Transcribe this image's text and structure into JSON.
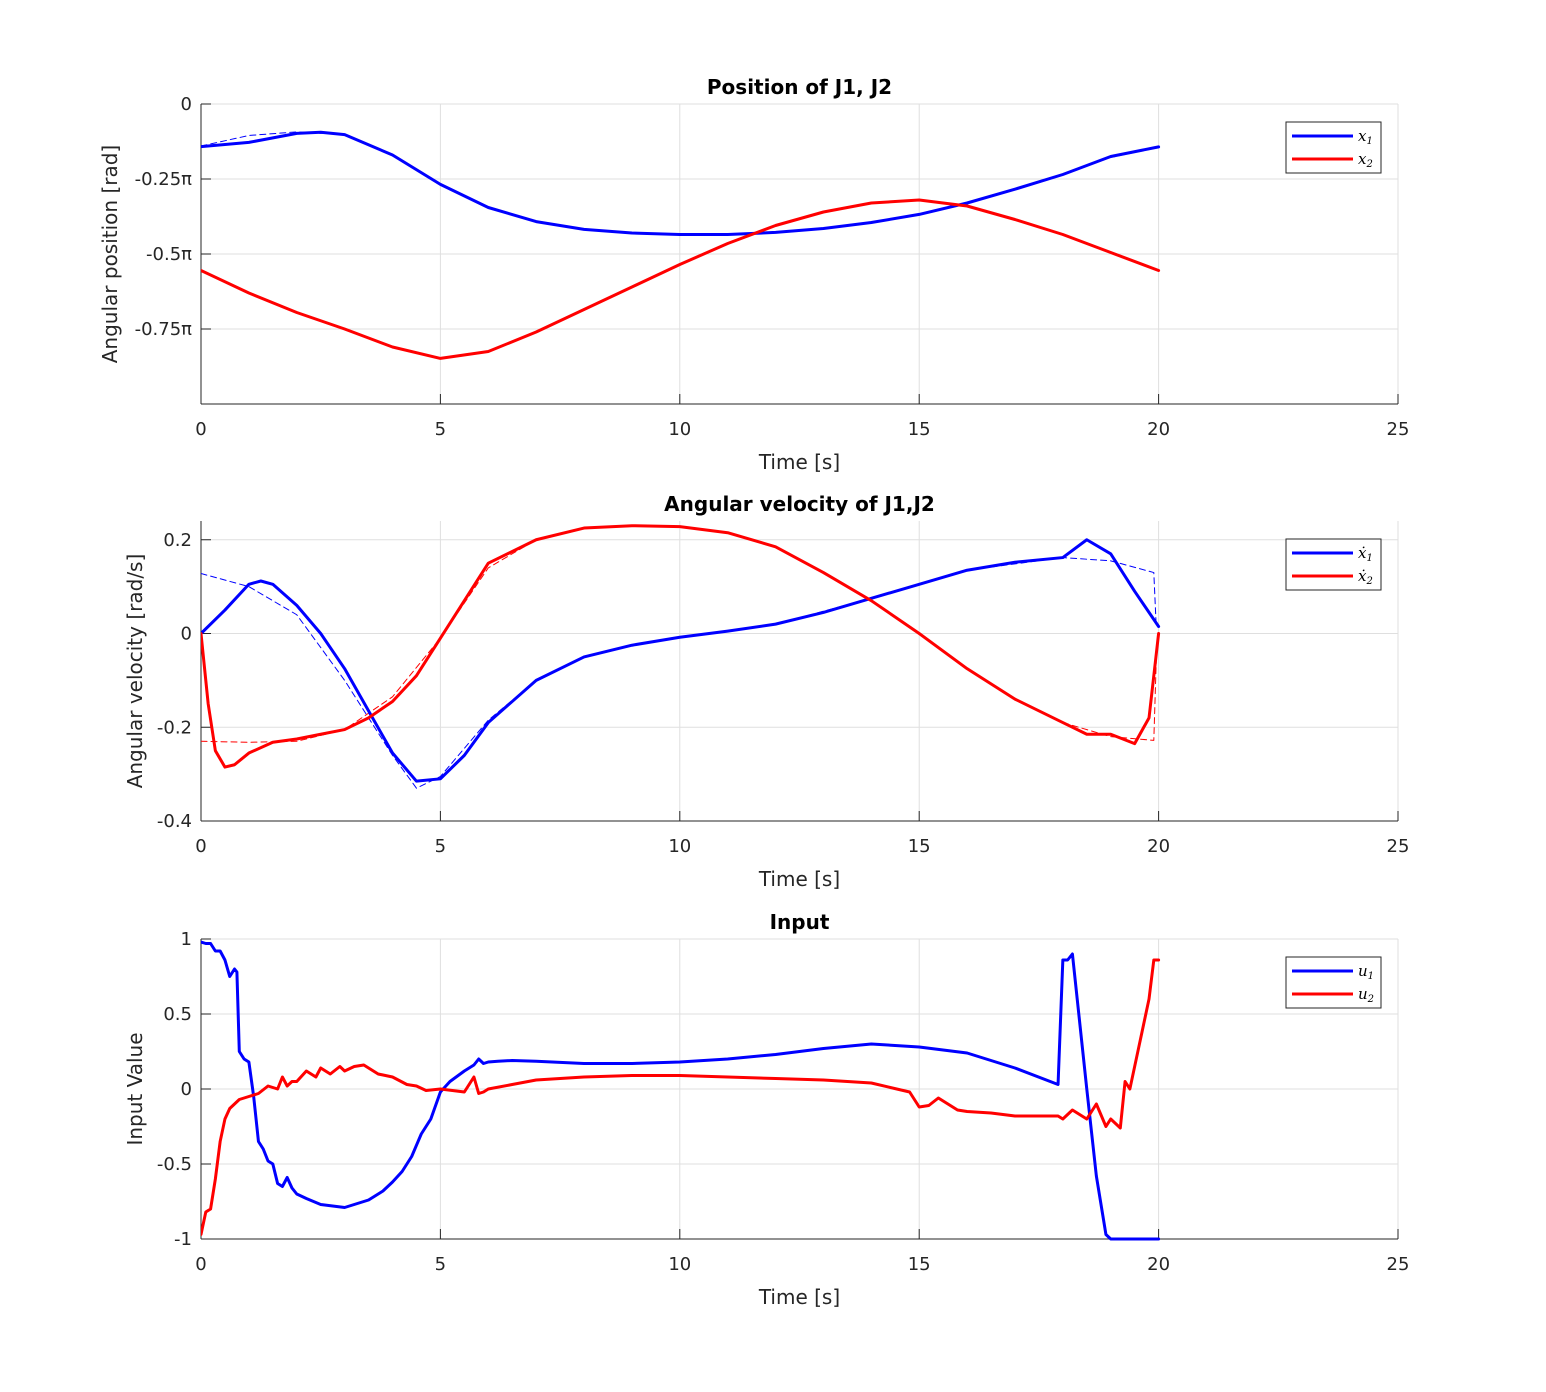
{
  "chart_data": [
    {
      "type": "line",
      "title": "Position of J1, J2",
      "xlabel": "Time [s]",
      "ylabel": "Angular position [rad]",
      "xlim": [
        0,
        25
      ],
      "ylim": [
        -1.0,
        0
      ],
      "xticks": [
        0,
        5,
        10,
        15,
        20,
        25
      ],
      "xtick_labels": [
        "0",
        "5",
        "10",
        "15",
        "20",
        "25"
      ],
      "yticks": [
        0,
        -0.25,
        -0.5,
        -0.75
      ],
      "ytick_labels": [
        "0",
        "-0.25π",
        "-0.5π",
        "-0.75π"
      ],
      "y_unit_note": "values in units of π rad",
      "grid": true,
      "legend": "top-right",
      "series": [
        {
          "name": "x1",
          "label_main": "x",
          "label_sub": "1",
          "color": "#0000ff",
          "style": "solid",
          "x": [
            0,
            1,
            2,
            2.5,
            3,
            4,
            5,
            6,
            7,
            8,
            9,
            10,
            11,
            12,
            13,
            14,
            15,
            16,
            17,
            18,
            19,
            20
          ],
          "y": [
            -0.142,
            -0.128,
            -0.098,
            -0.094,
            -0.102,
            -0.17,
            -0.268,
            -0.345,
            -0.392,
            -0.418,
            -0.43,
            -0.435,
            -0.435,
            -0.428,
            -0.415,
            -0.395,
            -0.368,
            -0.33,
            -0.284,
            -0.235,
            -0.175,
            -0.143
          ]
        },
        {
          "name": "x2",
          "label_main": "x",
          "label_sub": "2",
          "color": "#ff0000",
          "style": "solid",
          "x": [
            0,
            1,
            2,
            3,
            4,
            5,
            6,
            7,
            8,
            9,
            10,
            11,
            12,
            13,
            14,
            15,
            16,
            17,
            18,
            19,
            20
          ],
          "y": [
            -0.555,
            -0.63,
            -0.695,
            -0.75,
            -0.81,
            -0.848,
            -0.825,
            -0.76,
            -0.685,
            -0.61,
            -0.535,
            -0.465,
            -0.405,
            -0.36,
            -0.33,
            -0.32,
            -0.34,
            -0.385,
            -0.435,
            -0.495,
            -0.555
          ]
        },
        {
          "name": "x1 reference",
          "color": "#0000ff",
          "style": "dashed",
          "x": [
            0,
            1,
            2,
            3,
            4,
            5,
            6,
            7,
            8,
            9,
            10,
            11,
            12,
            13,
            14,
            15,
            16,
            17,
            18,
            19,
            20
          ],
          "y": [
            -0.14,
            -0.105,
            -0.093,
            -0.102,
            -0.17,
            -0.268,
            -0.345,
            -0.392,
            -0.418,
            -0.43,
            -0.435,
            -0.435,
            -0.428,
            -0.415,
            -0.395,
            -0.368,
            -0.33,
            -0.284,
            -0.235,
            -0.178,
            -0.145
          ]
        },
        {
          "name": "x2 reference",
          "color": "#ff0000",
          "style": "dashed",
          "x": [
            0,
            1,
            2,
            3,
            4,
            5,
            6,
            7,
            8,
            9,
            10,
            11,
            12,
            13,
            14,
            15,
            16,
            17,
            18,
            19,
            20
          ],
          "y": [
            -0.555,
            -0.628,
            -0.695,
            -0.75,
            -0.81,
            -0.848,
            -0.825,
            -0.76,
            -0.685,
            -0.61,
            -0.535,
            -0.465,
            -0.405,
            -0.36,
            -0.33,
            -0.32,
            -0.34,
            -0.385,
            -0.435,
            -0.495,
            -0.555
          ]
        }
      ]
    },
    {
      "type": "line",
      "title": "Angular velocity of J1,J2",
      "xlabel": "Time [s]",
      "ylabel": "Angular velocity [rad/s]",
      "xlim": [
        0,
        25
      ],
      "ylim": [
        -0.4,
        0.24
      ],
      "xticks": [
        0,
        5,
        10,
        15,
        20,
        25
      ],
      "xtick_labels": [
        "0",
        "5",
        "10",
        "15",
        "20",
        "25"
      ],
      "yticks": [
        0.2,
        0,
        -0.2,
        -0.4
      ],
      "ytick_labels": [
        "0.2",
        "0",
        "-0.2",
        "-0.4"
      ],
      "grid": true,
      "legend": "top-right",
      "series": [
        {
          "name": "x1 dot",
          "label_main": "ẋ",
          "label_sub": "1",
          "color": "#0000ff",
          "style": "solid",
          "x": [
            0,
            0.5,
            1,
            1.25,
            1.5,
            2,
            2.5,
            3,
            3.5,
            4,
            4.5,
            5,
            5.5,
            6,
            7,
            8,
            9,
            10,
            11,
            12,
            13,
            14,
            15,
            16,
            17,
            18,
            18.5,
            19,
            19.5,
            20
          ],
          "y": [
            0,
            0.05,
            0.105,
            0.112,
            0.105,
            0.06,
            0.0,
            -0.075,
            -0.165,
            -0.255,
            -0.315,
            -0.31,
            -0.26,
            -0.19,
            -0.1,
            -0.05,
            -0.025,
            -0.008,
            0.005,
            0.02,
            0.045,
            0.075,
            0.105,
            0.135,
            0.152,
            0.162,
            0.2,
            0.17,
            0.09,
            0.015
          ]
        },
        {
          "name": "x2 dot",
          "label_main": "ẋ",
          "label_sub": "2",
          "color": "#ff0000",
          "style": "solid",
          "x": [
            0,
            0.15,
            0.3,
            0.5,
            0.7,
            1,
            1.5,
            2,
            2.5,
            3,
            3.5,
            4,
            4.5,
            5,
            5.5,
            6,
            6.5,
            7,
            8,
            9,
            10,
            11,
            12,
            13,
            14,
            15,
            16,
            17,
            18,
            18.5,
            19,
            19.5,
            19.8,
            20
          ],
          "y": [
            0,
            -0.15,
            -0.25,
            -0.285,
            -0.28,
            -0.255,
            -0.232,
            -0.225,
            -0.215,
            -0.205,
            -0.18,
            -0.145,
            -0.09,
            -0.01,
            0.07,
            0.15,
            0.175,
            0.2,
            0.225,
            0.23,
            0.228,
            0.215,
            0.185,
            0.13,
            0.07,
            0.0,
            -0.075,
            -0.14,
            -0.19,
            -0.215,
            -0.215,
            -0.235,
            -0.18,
            0.0
          ]
        },
        {
          "name": "x1 dot reference",
          "color": "#0000ff",
          "style": "dashed",
          "x": [
            0,
            1,
            2,
            3,
            4,
            4.5,
            5,
            6,
            7,
            8,
            9,
            10,
            12,
            14,
            16,
            18,
            19,
            19.9,
            19.95
          ],
          "y": [
            0.128,
            0.1,
            0.04,
            -0.1,
            -0.26,
            -0.33,
            -0.305,
            -0.185,
            -0.1,
            -0.05,
            -0.025,
            -0.008,
            0.02,
            0.075,
            0.135,
            0.162,
            0.155,
            0.13,
            0.015
          ]
        },
        {
          "name": "x2 dot reference",
          "color": "#ff0000",
          "style": "dashed",
          "x": [
            0,
            1,
            2,
            3,
            4,
            5,
            6,
            7,
            8,
            9,
            10,
            11,
            12,
            13,
            14,
            15,
            16,
            17,
            18,
            19,
            19.9,
            19.95
          ],
          "y": [
            -0.23,
            -0.232,
            -0.23,
            -0.205,
            -0.135,
            -0.01,
            0.14,
            0.2,
            0.225,
            0.23,
            0.228,
            0.215,
            0.185,
            0.13,
            0.07,
            0.0,
            -0.075,
            -0.14,
            -0.19,
            -0.22,
            -0.228,
            -0.06
          ]
        }
      ]
    },
    {
      "type": "line",
      "title": "Input",
      "xlabel": "Time [s]",
      "ylabel": "Input Value",
      "xlim": [
        0,
        25
      ],
      "ylim": [
        -1,
        1
      ],
      "xticks": [
        0,
        5,
        10,
        15,
        20,
        25
      ],
      "xtick_labels": [
        "0",
        "5",
        "10",
        "15",
        "20",
        "25"
      ],
      "yticks": [
        1,
        0.5,
        0,
        -0.5,
        -1
      ],
      "ytick_labels": [
        "1",
        "0.5",
        "0",
        "-0.5",
        "-1"
      ],
      "grid": true,
      "legend": "top-right",
      "series": [
        {
          "name": "u1",
          "label_main": "u",
          "label_sub": "1",
          "color": "#0000ff",
          "style": "solid",
          "x": [
            0,
            0.1,
            0.2,
            0.3,
            0.4,
            0.5,
            0.6,
            0.7,
            0.75,
            0.8,
            0.9,
            1.0,
            1.1,
            1.2,
            1.3,
            1.4,
            1.5,
            1.6,
            1.7,
            1.8,
            1.9,
            2.0,
            2.2,
            2.5,
            3.0,
            3.2,
            3.5,
            3.8,
            4.0,
            4.2,
            4.4,
            4.6,
            4.8,
            5.0,
            5.2,
            5.5,
            5.7,
            5.8,
            5.9,
            6.0,
            6.2,
            6.5,
            7,
            8,
            9,
            10,
            11,
            12,
            13,
            14,
            15,
            15.5,
            16,
            17,
            17.9,
            18.0,
            18.1,
            18.2,
            18.3,
            18.5,
            18.7,
            18.9,
            19.0,
            19.5,
            20
          ],
          "y": [
            0.98,
            0.97,
            0.97,
            0.92,
            0.92,
            0.86,
            0.75,
            0.8,
            0.78,
            0.25,
            0.2,
            0.18,
            -0.05,
            -0.35,
            -0.4,
            -0.48,
            -0.5,
            -0.63,
            -0.65,
            -0.59,
            -0.66,
            -0.7,
            -0.73,
            -0.77,
            -0.79,
            -0.77,
            -0.74,
            -0.68,
            -0.62,
            -0.55,
            -0.45,
            -0.3,
            -0.2,
            -0.02,
            0.05,
            0.12,
            0.16,
            0.2,
            0.17,
            0.18,
            0.185,
            0.19,
            0.185,
            0.17,
            0.17,
            0.18,
            0.2,
            0.23,
            0.27,
            0.3,
            0.28,
            0.26,
            0.24,
            0.14,
            0.03,
            0.86,
            0.86,
            0.9,
            0.6,
            0.0,
            -0.58,
            -0.97,
            -1.0,
            -1.0,
            -1.0
          ]
        },
        {
          "name": "u2",
          "label_main": "u",
          "label_sub": "2",
          "color": "#ff0000",
          "style": "solid",
          "x": [
            0,
            0.1,
            0.2,
            0.3,
            0.4,
            0.5,
            0.6,
            0.7,
            0.8,
            1.0,
            1.2,
            1.4,
            1.6,
            1.7,
            1.8,
            1.9,
            2.0,
            2.2,
            2.4,
            2.5,
            2.7,
            2.9,
            3.0,
            3.2,
            3.4,
            3.5,
            3.7,
            4.0,
            4.3,
            4.5,
            4.7,
            5.0,
            5.5,
            5.7,
            5.8,
            5.9,
            6.0,
            6.5,
            7,
            8,
            9,
            10,
            11,
            12,
            13,
            14,
            14.8,
            15.0,
            15.2,
            15.4,
            15.6,
            15.8,
            16,
            16.5,
            17,
            17.9,
            18.0,
            18.2,
            18.5,
            18.7,
            18.9,
            19.0,
            19.2,
            19.3,
            19.4,
            19.6,
            19.8,
            19.9,
            20
          ],
          "y": [
            -0.97,
            -0.82,
            -0.8,
            -0.6,
            -0.35,
            -0.2,
            -0.13,
            -0.1,
            -0.07,
            -0.05,
            -0.03,
            0.02,
            0.0,
            0.08,
            0.02,
            0.05,
            0.05,
            0.12,
            0.08,
            0.14,
            0.1,
            0.15,
            0.12,
            0.15,
            0.16,
            0.14,
            0.1,
            0.08,
            0.03,
            0.02,
            -0.01,
            0.0,
            -0.02,
            0.08,
            -0.03,
            -0.02,
            0.0,
            0.03,
            0.06,
            0.08,
            0.09,
            0.09,
            0.08,
            0.07,
            0.06,
            0.04,
            -0.02,
            -0.12,
            -0.11,
            -0.06,
            -0.1,
            -0.14,
            -0.15,
            -0.16,
            -0.18,
            -0.18,
            -0.2,
            -0.14,
            -0.2,
            -0.1,
            -0.25,
            -0.2,
            -0.26,
            0.05,
            0.0,
            0.3,
            0.6,
            0.86,
            0.86
          ]
        }
      ]
    }
  ]
}
